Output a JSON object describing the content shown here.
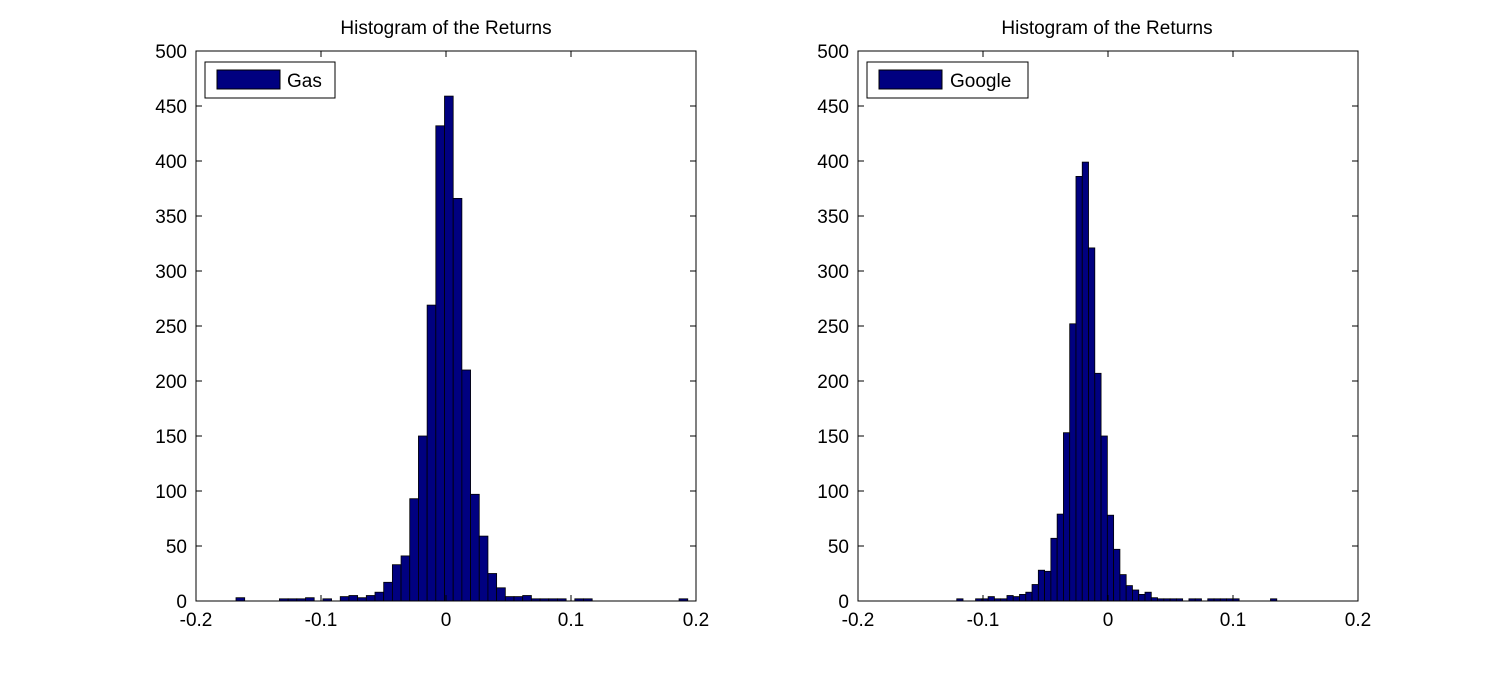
{
  "chart_data": [
    {
      "type": "bar",
      "title": "Histogram of the Returns",
      "xlabel": "",
      "ylabel": "",
      "xlim": [
        -0.2,
        0.2
      ],
      "ylim": [
        0,
        500
      ],
      "xticks": [
        -0.2,
        -0.1,
        0,
        0.1,
        0.2
      ],
      "xtick_labels": [
        "-0.2",
        "-0.1",
        "0",
        "0.1",
        "0.2"
      ],
      "yticks": [
        0,
        50,
        100,
        150,
        200,
        250,
        300,
        350,
        400,
        450,
        500
      ],
      "ytick_labels": [
        "0",
        "50",
        "100",
        "150",
        "200",
        "250",
        "300",
        "350",
        "400",
        "450",
        "500"
      ],
      "grid": false,
      "legend_position": "top-left",
      "bar_color": "#000080",
      "series": [
        {
          "name": "Gas",
          "bin_start": -0.168,
          "bin_width": 0.00695,
          "values": [
            3,
            0,
            0,
            0,
            0,
            2,
            2,
            2,
            3,
            0,
            2,
            0,
            4,
            5,
            3,
            5,
            8,
            17,
            33,
            41,
            93,
            150,
            269,
            432,
            459,
            366,
            210,
            97,
            59,
            25,
            12,
            4,
            4,
            5,
            2,
            2,
            2,
            2,
            0,
            2,
            2,
            0,
            0,
            0,
            0,
            0,
            0,
            0,
            0,
            0,
            0,
            2
          ]
        }
      ]
    },
    {
      "type": "bar",
      "title": "Histogram of the Returns",
      "xlabel": "",
      "ylabel": "",
      "xlim": [
        -0.2,
        0.2
      ],
      "ylim": [
        0,
        500
      ],
      "xticks": [
        -0.2,
        -0.1,
        0,
        0.1,
        0.2
      ],
      "xtick_labels": [
        "-0.2",
        "-0.1",
        "0",
        "0.1",
        "0.2"
      ],
      "yticks": [
        0,
        50,
        100,
        150,
        200,
        250,
        300,
        350,
        400,
        450,
        500
      ],
      "ytick_labels": [
        "0",
        "50",
        "100",
        "150",
        "200",
        "250",
        "300",
        "350",
        "400",
        "450",
        "500"
      ],
      "grid": false,
      "legend_position": "top-left",
      "bar_color": "#000080",
      "series": [
        {
          "name": "Google",
          "bin_start": -0.121,
          "bin_width": 0.00502,
          "values": [
            2,
            0,
            0,
            2,
            2,
            4,
            2,
            2,
            5,
            4,
            6,
            8,
            15,
            28,
            27,
            57,
            79,
            153,
            252,
            386,
            399,
            321,
            207,
            150,
            78,
            47,
            24,
            14,
            10,
            6,
            8,
            3,
            2,
            2,
            2,
            2,
            0,
            2,
            2,
            0,
            2,
            2,
            2,
            2,
            2,
            0,
            0,
            0,
            0,
            0,
            2
          ]
        }
      ]
    }
  ]
}
